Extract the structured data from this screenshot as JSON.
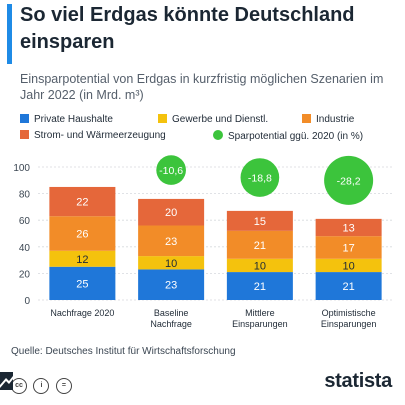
{
  "header": {
    "title": "So viel Erdgas könnte Deutschland einsparen",
    "subtitle": "Einsparpotential von Erdgas in kurzfristig möglichen Szenarien im Jahr 2022 (in Mrd. m³)"
  },
  "legend": {
    "items": [
      {
        "label": "Private Haushalte",
        "color": "#1f77d9"
      },
      {
        "label": "Gewerbe und Dienstl.",
        "color": "#f4c20d"
      },
      {
        "label": "Industrie",
        "color": "#f28c28"
      },
      {
        "label": "Strom- und Wärmeerzeugung",
        "color": "#e5673a"
      },
      {
        "label": "Sparpotential ggü. 2020 (in %)",
        "color": "#3cc43c"
      }
    ]
  },
  "chart_data": {
    "type": "bar",
    "stacked": true,
    "categories": [
      "Nachfrage 2020",
      "Baseline Nachfrage",
      "Mittlere Einsparungen",
      "Optimistische Einsparungen"
    ],
    "series": [
      {
        "name": "Private Haushalte",
        "values": [
          25,
          23,
          21,
          21
        ],
        "color": "#1f77d9"
      },
      {
        "name": "Gewerbe und Dienstl.",
        "values": [
          12,
          10,
          10,
          10
        ],
        "color": "#f4c20d"
      },
      {
        "name": "Industrie",
        "values": [
          26,
          23,
          21,
          17
        ],
        "color": "#f28c28"
      },
      {
        "name": "Strom- und Wärmeerzeugung",
        "values": [
          22,
          20,
          15,
          13
        ],
        "color": "#e5673a"
      }
    ],
    "savings_percent": [
      null,
      "-10,6",
      "-18,8",
      "-28,2"
    ],
    "savings_values": [
      null,
      10.6,
      18.8,
      28.2
    ],
    "savings_color": "#3cc43c",
    "ylim": [
      0,
      100
    ],
    "yticks": [
      0,
      20,
      40,
      60,
      80,
      100
    ],
    "grid": true
  },
  "footer": {
    "source": "Quelle: Deutsches Institut für Wirtschaftsforschung",
    "cc_icons": [
      "cc",
      "i",
      "="
    ],
    "brand": "statista"
  }
}
